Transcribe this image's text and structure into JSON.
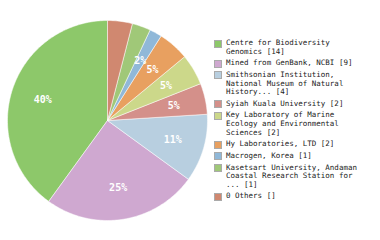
{
  "chart_data": {
    "type": "pie",
    "categories": [
      "Centre for Biodiversity\nGenomics [14]",
      "Mined from GenBank, NCBI [9]",
      "Smithsonian Institution,\nNational Museum of Natural\nHistory... [4]",
      "Syiah Kuala University [2]",
      "Key Laboratory of Marine\nEcology and Environmental\nSciences [2]",
      "Hy Laboratories, LTD [2]",
      "Macrogen, Korea [1]",
      "Kasetsart University, Andaman\nCoastal Research Station for\n... [1]",
      "0 Others []"
    ],
    "values": [
      40,
      25,
      11,
      5,
      5,
      5,
      2,
      3,
      4
    ],
    "value_labels": [
      "40%",
      "25%",
      "11%",
      "5%",
      "5%",
      "5%",
      "2%",
      null,
      null
    ],
    "colors": [
      "#8dc86a",
      "#cfa8d0",
      "#b8cfe0",
      "#d4908a",
      "#ccd88a",
      "#e8a060",
      "#90b8d8",
      "#a0c878",
      "#d08870"
    ],
    "data_labels": true,
    "legend": "right"
  }
}
